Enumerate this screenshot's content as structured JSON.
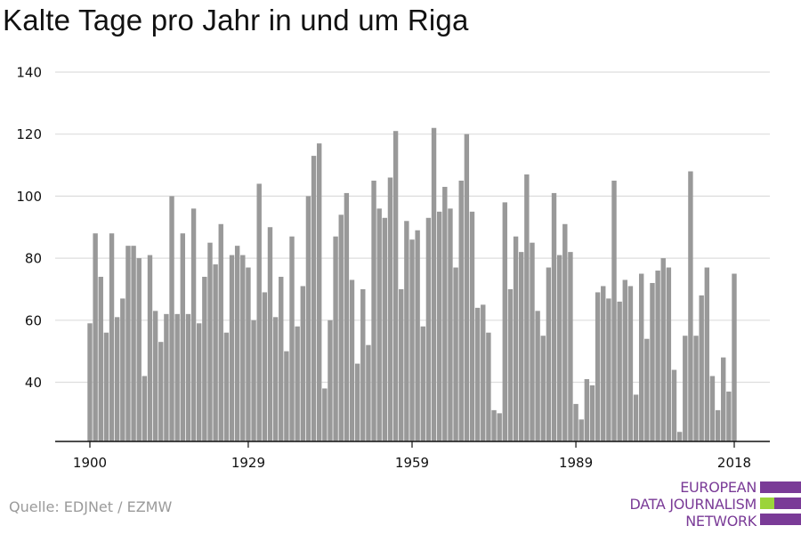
{
  "title": "Kalte Tage pro Jahr in und um Riga",
  "source": "Quelle: EDJNet / EZMW",
  "logo": {
    "lines": [
      "EUROPEAN",
      "DATA JOURNALISM",
      "NETWORK"
    ],
    "colors": {
      "primary": "#7a3b97",
      "accent": "#9bd43a"
    }
  },
  "colors": {
    "bar": "#999999",
    "grid": "#dddddd",
    "axis": "#111111"
  },
  "chart_data": {
    "type": "bar",
    "title": "Kalte Tage pro Jahr in und um Riga",
    "xlabel": "",
    "ylabel": "",
    "x_start": 1900,
    "x_end": 2018,
    "xticks": [
      1900,
      1929,
      1959,
      1989,
      2018
    ],
    "yticks": [
      40,
      60,
      80,
      100,
      120,
      140
    ],
    "ylim": [
      21,
      140
    ],
    "grid": true,
    "values": [
      59,
      88,
      74,
      56,
      88,
      61,
      67,
      84,
      84,
      80,
      42,
      81,
      63,
      53,
      62,
      100,
      62,
      88,
      62,
      96,
      59,
      74,
      85,
      78,
      91,
      56,
      81,
      84,
      81,
      77,
      60,
      104,
      69,
      90,
      61,
      74,
      50,
      87,
      58,
      71,
      100,
      113,
      117,
      38,
      60,
      87,
      94,
      101,
      73,
      46,
      70,
      52,
      105,
      96,
      93,
      106,
      121,
      70,
      92,
      86,
      89,
      58,
      93,
      122,
      95,
      103,
      96,
      77,
      105,
      120,
      95,
      64,
      65,
      56,
      31,
      30,
      98,
      70,
      87,
      82,
      107,
      85,
      63,
      55,
      77,
      101,
      81,
      91,
      82,
      33,
      28,
      41,
      39,
      69,
      71,
      67,
      105,
      66,
      73,
      71,
      36,
      75,
      54,
      72,
      76,
      80,
      77,
      44,
      24,
      55,
      108,
      55,
      68,
      77,
      42,
      31,
      48,
      37,
      75
    ]
  }
}
